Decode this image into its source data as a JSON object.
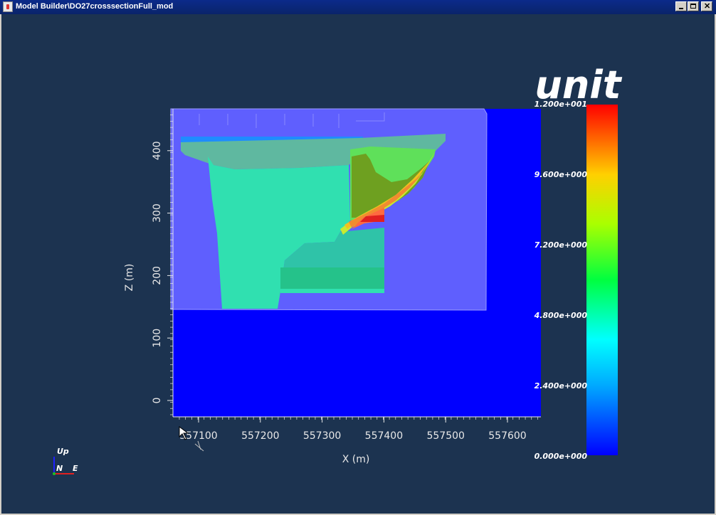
{
  "window": {
    "title": "Model Builder\\DO27crosssectionFull_mod",
    "buttons": [
      "minimize",
      "maximize",
      "close"
    ]
  },
  "icons": [
    "java-app-icon",
    "minimize-icon",
    "maximize-icon",
    "close-icon",
    "orientation-axes-icon",
    "mouse-cursor-icon"
  ],
  "colors": {
    "background": "#1c3350",
    "domain": "#0000ff",
    "section": "#5a5aff"
  },
  "plot": {
    "xlabel": "X (m)",
    "ylabel": "Z (m)",
    "xticks": [
      "557100",
      "557200",
      "557300",
      "557400",
      "557500",
      "557600"
    ],
    "yticks": [
      "0",
      "100",
      "200",
      "300",
      "400"
    ]
  },
  "legend": {
    "title": "unit",
    "ticks": [
      "1.200e+001",
      "9.600e+000",
      "7.200e+000",
      "4.800e+000",
      "2.400e+000",
      "0.000e+000"
    ],
    "min": 0,
    "max": 12
  },
  "orientation": {
    "up": "Up",
    "north": "N",
    "east": "E"
  }
}
